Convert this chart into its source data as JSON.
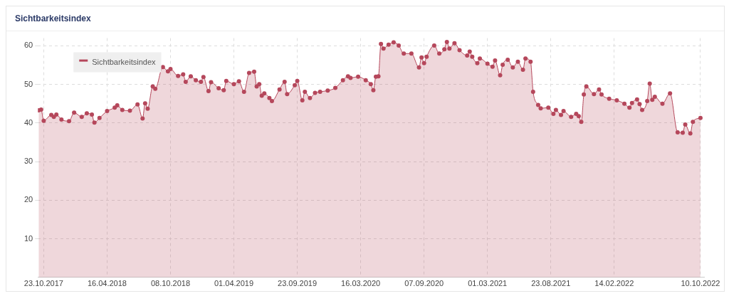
{
  "chart_data": {
    "type": "area",
    "title": "Sichtbarkeitsindex",
    "x": [
      "2017-10-09",
      "2017-10-16",
      "2017-10-23",
      "2017-11-13",
      "2017-11-20",
      "2017-11-27",
      "2017-12-11",
      "2018-01-01",
      "2018-01-15",
      "2018-02-05",
      "2018-02-19",
      "2018-03-05",
      "2018-03-12",
      "2018-03-26",
      "2018-04-16",
      "2018-05-07",
      "2018-05-14",
      "2018-05-28",
      "2018-06-18",
      "2018-07-09",
      "2018-07-23",
      "2018-07-30",
      "2018-08-06",
      "2018-08-20",
      "2018-08-27",
      "2018-09-17",
      "2018-10-01",
      "2018-10-08",
      "2018-10-29",
      "2018-11-12",
      "2018-11-19",
      "2018-12-03",
      "2018-12-17",
      "2018-12-31",
      "2019-01-07",
      "2019-01-21",
      "2019-01-28",
      "2019-02-18",
      "2019-03-04",
      "2019-03-11",
      "2019-04-01",
      "2019-04-15",
      "2019-04-29",
      "2019-05-13",
      "2019-05-27",
      "2019-06-03",
      "2019-06-10",
      "2019-06-17",
      "2019-06-24",
      "2019-07-08",
      "2019-07-15",
      "2019-08-05",
      "2019-08-19",
      "2019-08-26",
      "2019-09-16",
      "2019-09-23",
      "2019-10-07",
      "2019-10-14",
      "2019-10-28",
      "2019-11-11",
      "2019-11-25",
      "2019-12-16",
      "2020-01-06",
      "2020-01-27",
      "2020-02-10",
      "2020-02-17",
      "2020-03-09",
      "2020-03-30",
      "2020-04-13",
      "2020-04-20",
      "2020-04-27",
      "2020-05-04",
      "2020-05-11",
      "2020-05-18",
      "2020-06-01",
      "2020-06-15",
      "2020-06-29",
      "2020-07-13",
      "2020-08-03",
      "2020-08-24",
      "2020-08-31",
      "2020-09-07",
      "2020-09-14",
      "2020-10-05",
      "2020-10-19",
      "2020-11-02",
      "2020-11-09",
      "2020-11-16",
      "2020-11-30",
      "2020-12-14",
      "2021-01-04",
      "2021-01-11",
      "2021-01-18",
      "2021-02-01",
      "2021-02-08",
      "2021-03-01",
      "2021-03-15",
      "2021-03-22",
      "2021-04-05",
      "2021-04-12",
      "2021-04-26",
      "2021-05-10",
      "2021-05-24",
      "2021-06-07",
      "2021-06-14",
      "2021-06-28",
      "2021-07-05",
      "2021-07-19",
      "2021-07-26",
      "2021-08-16",
      "2021-08-30",
      "2021-09-06",
      "2021-09-20",
      "2021-09-27",
      "2021-10-18",
      "2021-11-01",
      "2021-11-08",
      "2021-11-15",
      "2021-11-22",
      "2021-11-29",
      "2021-12-20",
      "2022-01-03",
      "2022-01-10",
      "2022-01-31",
      "2022-02-21",
      "2022-03-14",
      "2022-03-28",
      "2022-04-04",
      "2022-04-18",
      "2022-04-25",
      "2022-05-02",
      "2022-05-16",
      "2022-05-23",
      "2022-05-30",
      "2022-06-06",
      "2022-06-27",
      "2022-07-18",
      "2022-08-08",
      "2022-08-22",
      "2022-08-29",
      "2022-09-12",
      "2022-09-19",
      "2022-10-10"
    ],
    "series": [
      {
        "name": "Sichtbarkeitsindex",
        "color": "#b5475b",
        "values": [
          43.3,
          43.5,
          40.6,
          42.1,
          41.6,
          42.2,
          40.9,
          40.5,
          42.7,
          41.6,
          42.5,
          42.2,
          40.1,
          41.3,
          43.1,
          44.0,
          44.6,
          43.4,
          43.2,
          44.8,
          41.2,
          45.1,
          43.7,
          49.5,
          48.9,
          54.5,
          53.4,
          54.0,
          52.2,
          52.6,
          50.7,
          52.1,
          51.1,
          50.7,
          51.9,
          48.3,
          50.6,
          49.0,
          48.5,
          50.9,
          50.1,
          50.8,
          48.1,
          53.0,
          53.3,
          49.5,
          50.1,
          47.1,
          47.7,
          46.5,
          45.7,
          48.7,
          50.7,
          47.5,
          49.8,
          50.9,
          45.9,
          48.1,
          46.5,
          47.8,
          48.1,
          48.4,
          49.1,
          51.1,
          52.1,
          51.7,
          52.0,
          51.1,
          50.1,
          48.5,
          52.0,
          52.1,
          60.5,
          59.3,
          60.3,
          60.9,
          60.1,
          58.0,
          58.0,
          54.4,
          57.0,
          55.5,
          57.2,
          60.1,
          58.0,
          59.1,
          61.0,
          59.3,
          60.7,
          58.9,
          57.5,
          58.5,
          57.2,
          55.5,
          56.7,
          55.4,
          54.6,
          56.2,
          52.4,
          55.1,
          56.4,
          54.4,
          55.9,
          53.8,
          56.7,
          55.9,
          48.1,
          44.7,
          43.8,
          44.0,
          42.4,
          43.4,
          42.1,
          43.1,
          41.6,
          42.4,
          41.8,
          40.3,
          47.4,
          49.5,
          47.5,
          48.7,
          47.4,
          46.3,
          45.9,
          45.0,
          44.0,
          45.2,
          46.1,
          44.9,
          43.4,
          45.7,
          50.2,
          46.0,
          46.8,
          45.0,
          47.7,
          37.6,
          37.5,
          39.6,
          37.3,
          40.3,
          41.3
        ]
      }
    ],
    "xlim": [
      "2017-10-07",
      "2022-10-20"
    ],
    "xticks": [
      {
        "value": "2017-10-23",
        "label": "23.10.2017"
      },
      {
        "value": "2018-04-16",
        "label": "16.04.2018"
      },
      {
        "value": "2018-10-08",
        "label": "08.10.2018"
      },
      {
        "value": "2019-04-01",
        "label": "01.04.2019"
      },
      {
        "value": "2019-09-23",
        "label": "23.09.2019"
      },
      {
        "value": "2020-03-16",
        "label": "16.03.2020"
      },
      {
        "value": "2020-09-07",
        "label": "07.09.2020"
      },
      {
        "value": "2021-03-01",
        "label": "01.03.2021"
      },
      {
        "value": "2021-08-23",
        "label": "23.08.2021"
      },
      {
        "value": "2022-02-14",
        "label": "14.02.2022"
      },
      {
        "value": "2022-10-10",
        "label": "10.10.2022"
      }
    ],
    "ylim": [
      0,
      62
    ],
    "yticks": [
      10,
      20,
      30,
      40,
      50,
      60
    ],
    "grid": true,
    "legend": "top left",
    "marker": "circle",
    "line_style": "solid"
  }
}
